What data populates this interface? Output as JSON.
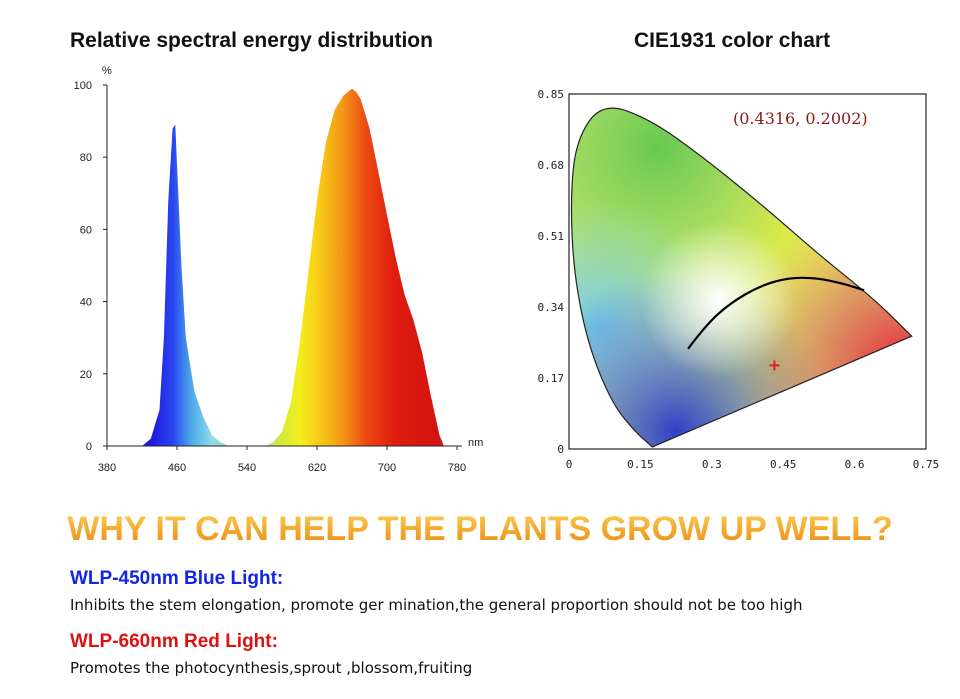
{
  "chart_data": [
    {
      "type": "area",
      "title": "Relative spectral energy distribution",
      "ylabel": "%",
      "xlabel": "nm",
      "xlim": [
        380,
        780
      ],
      "ylim": [
        0,
        100
      ],
      "xticks": [
        "380",
        "460",
        "540",
        "620",
        "700",
        "780"
      ],
      "yticks": [
        "0",
        "20",
        "40",
        "60",
        "80",
        "100"
      ],
      "grid": false,
      "x": [
        420,
        430,
        440,
        445,
        450,
        455,
        458,
        460,
        465,
        470,
        480,
        490,
        500,
        510,
        520,
        560,
        570,
        580,
        590,
        600,
        610,
        620,
        630,
        640,
        650,
        655,
        660,
        665,
        670,
        680,
        690,
        700,
        710,
        720,
        730,
        740,
        750,
        760,
        765
      ],
      "values": [
        0,
        2,
        10,
        30,
        68,
        88,
        89,
        78,
        50,
        30,
        15,
        8,
        3,
        1,
        0,
        0,
        1,
        4,
        12,
        28,
        48,
        68,
        84,
        93,
        97,
        98,
        99,
        98,
        96,
        88,
        76,
        64,
        52,
        42,
        35,
        26,
        14,
        3,
        0
      ]
    },
    {
      "type": "scatter",
      "title": "CIE1931 color chart",
      "xlim": [
        0,
        0.75
      ],
      "ylim": [
        0,
        0.85
      ],
      "xticks": [
        "0",
        "0.15",
        "0.3",
        "0.45",
        "0.6",
        "0.75"
      ],
      "yticks": [
        "0",
        "0.17",
        "0.34",
        "0.51",
        "0.68",
        "0.85"
      ],
      "grid": false,
      "points": [
        {
          "x": 0.4316,
          "y": 0.2002
        }
      ],
      "annotation": "(0.4316, 0.2002)",
      "locus": [
        [
          0.175,
          0.005
        ],
        [
          0.72,
          0.27
        ],
        [
          0.64,
          0.36
        ],
        [
          0.52,
          0.47
        ],
        [
          0.4,
          0.59
        ],
        [
          0.28,
          0.7
        ],
        [
          0.17,
          0.79
        ],
        [
          0.07,
          0.83
        ],
        [
          0.015,
          0.74
        ],
        [
          0.003,
          0.6
        ],
        [
          0.01,
          0.42
        ],
        [
          0.04,
          0.25
        ],
        [
          0.09,
          0.11
        ],
        [
          0.14,
          0.04
        ],
        [
          0.175,
          0.005
        ]
      ],
      "planckian": [
        [
          0.25,
          0.24
        ],
        [
          0.29,
          0.3
        ],
        [
          0.34,
          0.35
        ],
        [
          0.4,
          0.39
        ],
        [
          0.46,
          0.41
        ],
        [
          0.52,
          0.41
        ],
        [
          0.58,
          0.395
        ],
        [
          0.62,
          0.38
        ]
      ]
    }
  ],
  "headline": "WHY IT CAN HELP THE PLANTS GROW UP WELL?",
  "blue": {
    "heading": "WLP-450nm Blue Light:",
    "text": "Inhibits the stem elongation, promote ger mination,the general proportion should not be too high"
  },
  "red": {
    "heading": "WLP-660nm Red Light:",
    "text": "Promotes the photocynthesis,sprout ,blossom,fruiting"
  },
  "colors": {
    "headline": "#f3a62a",
    "blue_heading": "#1026e6",
    "red_heading": "#e01010",
    "marker": "#e02020",
    "annotation": "#8a1a1a"
  }
}
